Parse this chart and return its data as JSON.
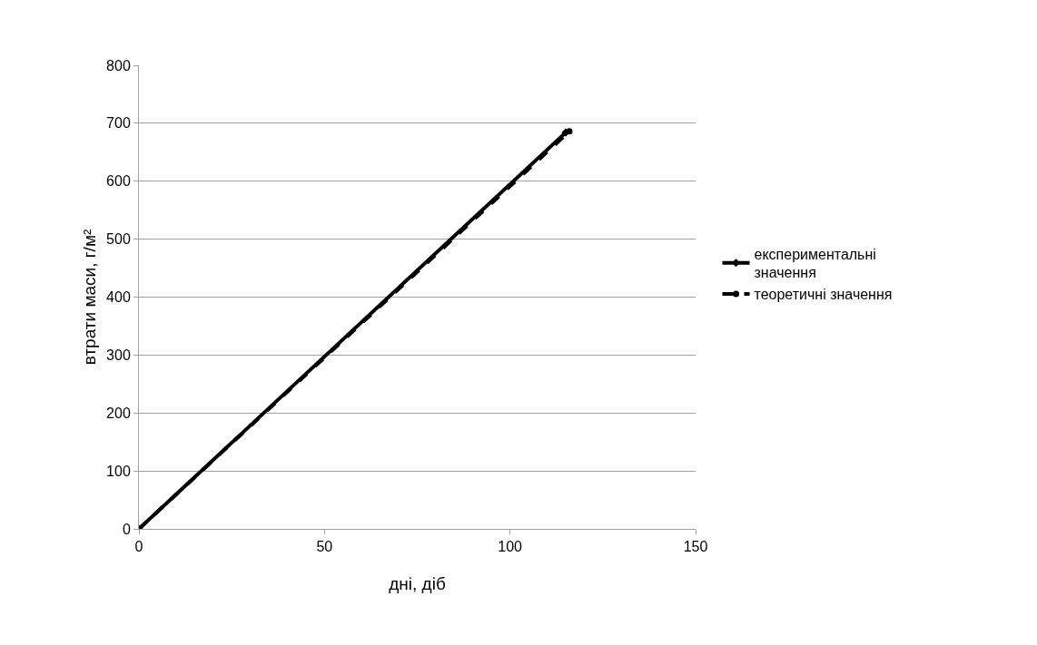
{
  "chart_data": {
    "type": "line",
    "xlabel": "дні, діб",
    "ylabel": "втрати маси, г/м²",
    "series": [
      {
        "name": "експериментальні значення",
        "color": "#000000",
        "x": [
          0,
          115
        ],
        "values": [
          0,
          684
        ],
        "marker": "diamond",
        "line_style": "solid"
      },
      {
        "name": "теоретичні значення",
        "color": "#000000",
        "x": [
          0,
          116
        ],
        "values": [
          0,
          686
        ],
        "marker": "circle",
        "line_style": "dashed"
      }
    ],
    "xlim": [
      0,
      150
    ],
    "xticks": [
      0,
      50,
      100,
      150
    ],
    "ylim": [
      0,
      800
    ],
    "yticks": [
      0,
      100,
      200,
      300,
      400,
      500,
      600,
      700,
      800
    ],
    "grid": "y",
    "legend": "right"
  }
}
